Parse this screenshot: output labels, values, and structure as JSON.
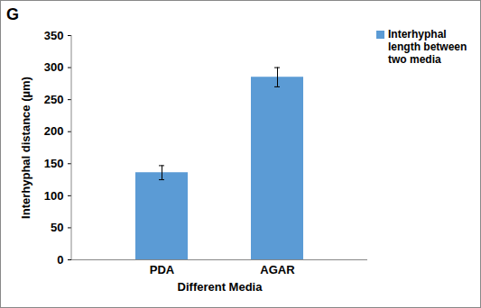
{
  "chart_data": {
    "type": "bar",
    "title": "G",
    "categories": [
      "PDA",
      "AGAR"
    ],
    "series": [
      {
        "name": "Interhyphal length between two media",
        "color": "#5b9bd5",
        "values": [
          136,
          285
        ],
        "errors": [
          11,
          15
        ]
      }
    ],
    "x_label": "Different Media",
    "y_label": "Interhyphal distance (µm)",
    "ylim": [
      0,
      350
    ],
    "yticks": [
      0,
      50,
      100,
      150,
      200,
      250,
      300,
      350
    ],
    "grid": false,
    "legend": "right"
  }
}
